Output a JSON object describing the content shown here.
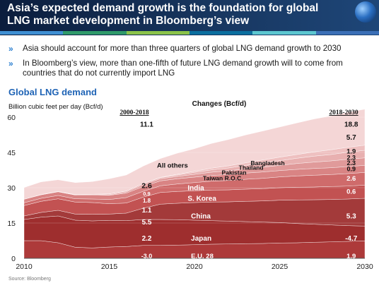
{
  "header": {
    "title": "Asia’s expected demand growth is the foundation for global LNG market development in Bloomberg’s view",
    "accent_colors": [
      "#3f8fd2",
      "#2f9a6a",
      "#8bc34a",
      "#0b6e9e",
      "#5cc6d0",
      "#3b6fb6"
    ]
  },
  "bullets": [
    "Asia should account for more than three quarters of global LNG demand growth to 2030",
    "In Bloomberg’s view, more than one-fifth of future LNG demand growth will to come from countries that do not currently import LNG"
  ],
  "section_title": "Global LNG demand",
  "source": "Source: Bloomberg",
  "chart_data": {
    "type": "area",
    "stacked": true,
    "ylabel": "Billion cubic feet per day (Bcf/d)",
    "center_label": "Changes (Bcf/d)",
    "left_period_label": "2000-2018",
    "right_period_label": "2018-2030",
    "x": [
      2010,
      2011,
      2012,
      2013,
      2014,
      2015,
      2016,
      2017,
      2018,
      2019,
      2020,
      2021,
      2022,
      2023,
      2024,
      2025,
      2026,
      2027,
      2028,
      2029,
      2030
    ],
    "xticks": [
      2010,
      2015,
      2020,
      2025,
      2030
    ],
    "yticks": [
      0,
      15,
      30,
      45,
      60
    ],
    "ylim": [
      0,
      60
    ],
    "xlim": [
      2010,
      2030
    ],
    "series": [
      {
        "name": "E.U. 28",
        "color": "#ad3a3a",
        "values": [
          7.5,
          7.5,
          6.6,
          4.7,
          4.4,
          4.8,
          5.0,
          5.5,
          5.5,
          5.6,
          5.8,
          6.0,
          6.1,
          6.2,
          6.3,
          6.5,
          6.6,
          6.8,
          7.0,
          7.2,
          7.4
        ]
      },
      {
        "name": "Japan",
        "color": "#9e2e2e",
        "values": [
          9.0,
          10.0,
          11.4,
          11.5,
          11.5,
          11.3,
          11.0,
          11.0,
          11.0,
          10.8,
          10.4,
          10.0,
          9.7,
          9.4,
          9.1,
          8.7,
          8.2,
          7.7,
          7.2,
          6.7,
          6.3
        ]
      },
      {
        "name": "China",
        "color": "#a33a3a",
        "values": [
          1.5,
          2.0,
          2.4,
          2.6,
          2.8,
          2.7,
          3.2,
          4.8,
          6.5,
          7.0,
          7.5,
          7.9,
          8.2,
          8.6,
          9.0,
          9.5,
          10.0,
          10.4,
          10.8,
          11.3,
          11.8
        ]
      },
      {
        "name": "S. Korea",
        "color": "#c25252",
        "values": [
          4.4,
          4.7,
          4.9,
          5.1,
          5.0,
          4.4,
          4.3,
          4.7,
          5.0,
          5.0,
          5.0,
          5.1,
          5.1,
          5.2,
          5.2,
          5.3,
          5.4,
          5.4,
          5.5,
          5.5,
          5.6
        ]
      },
      {
        "name": "India",
        "color": "#cf6b6b",
        "values": [
          1.2,
          1.3,
          1.4,
          1.4,
          1.5,
          1.8,
          2.3,
          2.5,
          2.8,
          3.2,
          3.5,
          3.8,
          4.0,
          4.2,
          4.4,
          4.6,
          4.8,
          5.0,
          5.1,
          5.3,
          5.4
        ]
      },
      {
        "name": "Taiwan R.O.C.",
        "color": "#d98484",
        "values": [
          1.5,
          1.5,
          1.6,
          1.6,
          1.8,
          1.8,
          1.9,
          2.0,
          2.1,
          2.2,
          2.3,
          2.4,
          2.5,
          2.6,
          2.7,
          2.7,
          2.8,
          2.9,
          2.9,
          3.0,
          3.0
        ]
      },
      {
        "name": "Pakistan",
        "color": "#e09a9a",
        "values": [
          0.0,
          0.0,
          0.0,
          0.0,
          0.0,
          0.2,
          0.5,
          0.8,
          0.9,
          1.0,
          1.2,
          1.4,
          1.6,
          1.8,
          2.0,
          2.2,
          2.5,
          2.7,
          2.9,
          3.1,
          3.2
        ]
      },
      {
        "name": "Thailand",
        "color": "#e8b0b0",
        "values": [
          0.0,
          0.1,
          0.1,
          0.2,
          0.2,
          0.4,
          0.4,
          0.5,
          0.5,
          0.6,
          0.8,
          1.0,
          1.2,
          1.5,
          1.8,
          2.0,
          2.2,
          2.5,
          2.7,
          3.0,
          3.2
        ]
      },
      {
        "name": "Bangladesh",
        "color": "#eec0c0",
        "values": [
          0.0,
          0.0,
          0.0,
          0.0,
          0.0,
          0.0,
          0.0,
          0.0,
          0.1,
          0.3,
          0.5,
          0.7,
          0.9,
          1.1,
          1.3,
          1.5,
          1.6,
          1.8,
          2.0,
          2.1,
          2.2
        ]
      },
      {
        "name": "All others",
        "color": "#f4d6d6",
        "values": [
          5.0,
          5.4,
          5.0,
          5.1,
          5.4,
          6.4,
          6.8,
          7.4,
          8.0,
          9.0,
          9.6,
          10.5,
          11.2,
          11.8,
          12.3,
          12.8,
          13.4,
          14.0,
          14.4,
          14.9,
          15.3
        ]
      }
    ],
    "left_annotations": [
      {
        "text": "11.1",
        "y": 57,
        "size": 10,
        "color": "#111111"
      },
      {
        "text": "2.6",
        "y": 31,
        "size": 10.5,
        "color": "#111111"
      },
      {
        "text": "0.9",
        "y": 27.5,
        "size": 7.5,
        "color": "#ffffff"
      },
      {
        "text": "1.8",
        "y": 24.5,
        "size": 8,
        "color": "#ffffff"
      },
      {
        "text": "1.1",
        "y": 20.5,
        "size": 10,
        "color": "#ffffff"
      },
      {
        "text": "5.5",
        "y": 15.5,
        "size": 10,
        "color": "#ffffff"
      },
      {
        "text": "2.2",
        "y": 8.5,
        "size": 10,
        "color": "#ffffff"
      },
      {
        "text": "-3.0",
        "y": 1.0,
        "size": 9,
        "color": "#ffffff"
      }
    ],
    "right_annotations": [
      {
        "text": "18.8",
        "y": 57,
        "size": 10,
        "color": "#111111"
      },
      {
        "text": "5.7",
        "y": 51.5,
        "size": 10,
        "color": "#111111"
      },
      {
        "text": "1.9",
        "y": 45.5,
        "size": 9.5,
        "color": "#111111"
      },
      {
        "text": "2.3",
        "y": 42.8,
        "size": 9,
        "color": "#111111"
      },
      {
        "text": "2.3",
        "y": 40.5,
        "size": 9,
        "color": "#111111"
      },
      {
        "text": "0.9",
        "y": 38.0,
        "size": 9,
        "color": "#111111"
      },
      {
        "text": "2.6",
        "y": 34.0,
        "size": 9.5,
        "color": "#ffffff"
      },
      {
        "text": "0.6",
        "y": 28.5,
        "size": 9.5,
        "color": "#ffffff"
      },
      {
        "text": "5.3",
        "y": 18.0,
        "size": 10,
        "color": "#ffffff"
      },
      {
        "text": "-4.7",
        "y": 8.5,
        "size": 10,
        "color": "#ffffff"
      },
      {
        "text": "1.9",
        "y": 1.0,
        "size": 9.5,
        "color": "#ffffff"
      }
    ],
    "series_labels": [
      {
        "text": "All others",
        "x": 2017.8,
        "y": 39.5,
        "size": 9.5,
        "color": "#111111",
        "weight": "bold"
      },
      {
        "text": "Bangladesh",
        "x": 2023.3,
        "y": 40.5,
        "size": 8.5,
        "color": "#111111",
        "weight": "normal"
      },
      {
        "text": "Thailand",
        "x": 2022.6,
        "y": 38.5,
        "size": 8.5,
        "color": "#111111",
        "weight": "normal"
      },
      {
        "text": "Pakistan",
        "x": 2021.6,
        "y": 36.5,
        "size": 8.5,
        "color": "#111111",
        "weight": "normal"
      },
      {
        "text": "Taiwan R.O.C.",
        "x": 2020.5,
        "y": 34.0,
        "size": 8.5,
        "color": "#111111",
        "weight": "normal"
      },
      {
        "text": "India",
        "x": 2019.6,
        "y": 30.0,
        "size": 10,
        "color": "#ffffff",
        "weight": "bold"
      },
      {
        "text": "S. Korea",
        "x": 2019.6,
        "y": 25.5,
        "size": 10,
        "color": "#ffffff",
        "weight": "bold"
      },
      {
        "text": "China",
        "x": 2019.8,
        "y": 18.0,
        "size": 10,
        "color": "#ffffff",
        "weight": "bold"
      },
      {
        "text": "Japan",
        "x": 2019.8,
        "y": 8.5,
        "size": 10,
        "color": "#ffffff",
        "weight": "bold"
      },
      {
        "text": "E.U. 28",
        "x": 2019.8,
        "y": 1.0,
        "size": 9.5,
        "color": "#ffffff",
        "weight": "bold"
      }
    ]
  }
}
